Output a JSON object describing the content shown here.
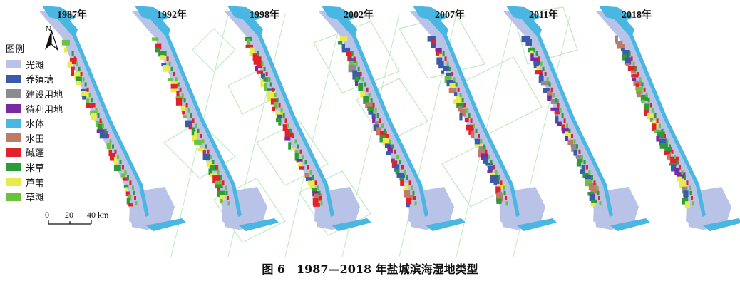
{
  "figure": {
    "caption": "图 6　1987—2018 年盐城滨海湿地类型"
  },
  "panels": [
    {
      "year": "1987年",
      "aquaculture": 0.05,
      "construction": 0.02,
      "reclaim": 0.05,
      "paddy": 0.0,
      "reed": 0.7,
      "suaeda": 0.8,
      "spartina": 0.4,
      "grass": 0.5
    },
    {
      "year": "1992年",
      "aquaculture": 0.08,
      "construction": 0.03,
      "reclaim": 0.05,
      "paddy": 0.02,
      "reed": 0.7,
      "suaeda": 0.8,
      "spartina": 0.45,
      "grass": 0.5
    },
    {
      "year": "1998年",
      "aquaculture": 0.3,
      "construction": 0.05,
      "reclaim": 0.25,
      "paddy": 0.2,
      "reed": 0.6,
      "suaeda": 0.6,
      "spartina": 0.5,
      "grass": 0.45
    },
    {
      "year": "2002年",
      "aquaculture": 0.7,
      "construction": 0.08,
      "reclaim": 0.3,
      "paddy": 0.35,
      "reed": 0.4,
      "suaeda": 0.45,
      "spartina": 0.55,
      "grass": 0.4
    },
    {
      "year": "2007年",
      "aquaculture": 0.8,
      "construction": 0.12,
      "reclaim": 0.3,
      "paddy": 0.4,
      "reed": 0.35,
      "suaeda": 0.35,
      "spartina": 0.6,
      "grass": 0.35
    },
    {
      "year": "2011年",
      "aquaculture": 0.85,
      "construction": 0.18,
      "reclaim": 0.35,
      "paddy": 0.4,
      "reed": 0.3,
      "suaeda": 0.3,
      "spartina": 0.6,
      "grass": 0.3
    },
    {
      "year": "2018年",
      "aquaculture": 0.9,
      "construction": 0.25,
      "reclaim": 0.4,
      "paddy": 0.45,
      "reed": 0.3,
      "suaeda": 0.25,
      "spartina": 0.65,
      "grass": 0.3
    }
  ],
  "legend": {
    "title": "图例",
    "items": [
      {
        "key": "mudflat",
        "label": "光滩",
        "color": "#b9c3e8"
      },
      {
        "key": "aquaculture",
        "label": "养殖塘",
        "color": "#3b5aa8"
      },
      {
        "key": "construction",
        "label": "建设用地",
        "color": "#8c8c8c"
      },
      {
        "key": "reclaim",
        "label": "待利用地",
        "color": "#7a2aa0"
      },
      {
        "key": "water",
        "label": "水体",
        "color": "#4ab6e2"
      },
      {
        "key": "paddy",
        "label": "水田",
        "color": "#c07a68"
      },
      {
        "key": "suaeda",
        "label": "碱蓬",
        "color": "#e2222a"
      },
      {
        "key": "spartina",
        "label": "米草",
        "color": "#2f9a3a"
      },
      {
        "key": "reed",
        "label": "芦苇",
        "color": "#e8ec4a"
      },
      {
        "key": "grass",
        "label": "草滩",
        "color": "#6cc23c"
      }
    ]
  },
  "north_label": "N",
  "scale": {
    "ticks": [
      "0",
      "20",
      "40 km"
    ]
  },
  "watermark_color": "#bfeabf"
}
